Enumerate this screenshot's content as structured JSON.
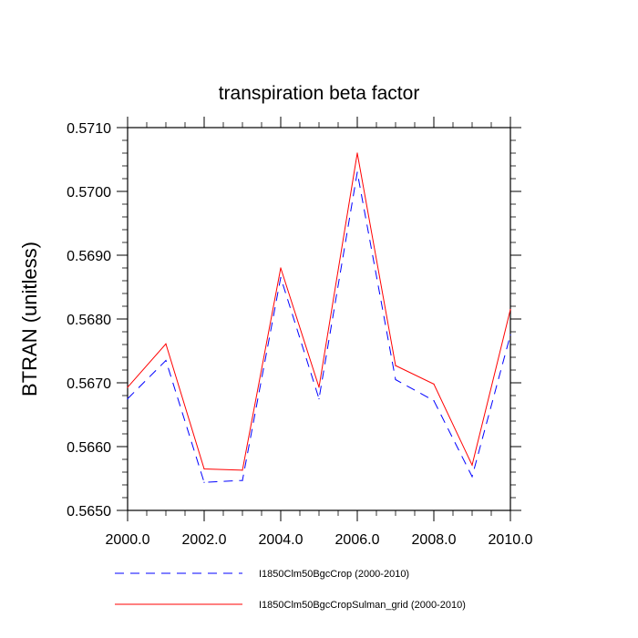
{
  "chart_data": {
    "type": "line",
    "title": "transpiration beta factor",
    "xlabel": "",
    "ylabel": "BTRAN  (unitless)",
    "x": [
      2000,
      2001,
      2002,
      2003,
      2004,
      2005,
      2006,
      2007,
      2008,
      2009,
      2010
    ],
    "xlim": [
      2000,
      2010
    ],
    "ylim": [
      0.565,
      0.571
    ],
    "xticks": [
      "2000.0",
      "2002.0",
      "2004.0",
      "2006.0",
      "2008.0",
      "2010.0"
    ],
    "yticks": [
      "0.5650",
      "0.5660",
      "0.5670",
      "0.5680",
      "0.5690",
      "0.5700",
      "0.5710"
    ],
    "grid": false,
    "legend_position": "bottom",
    "series": [
      {
        "name": "I1850Clm50BgcCrop (2000-2010)",
        "color": "#0000ff",
        "dash": "dashed",
        "values": [
          0.56675,
          0.56735,
          0.56544,
          0.56547,
          0.56865,
          0.56675,
          0.5703,
          0.56705,
          0.56672,
          0.56553,
          0.56775
        ]
      },
      {
        "name": "I1850Clm50BgcCropSulman_grid (2000-2010)",
        "color": "#ff0000",
        "dash": "solid",
        "values": [
          0.56693,
          0.56761,
          0.56565,
          0.56563,
          0.5688,
          0.56693,
          0.5706,
          0.56727,
          0.56698,
          0.56571,
          0.56815
        ]
      }
    ]
  }
}
